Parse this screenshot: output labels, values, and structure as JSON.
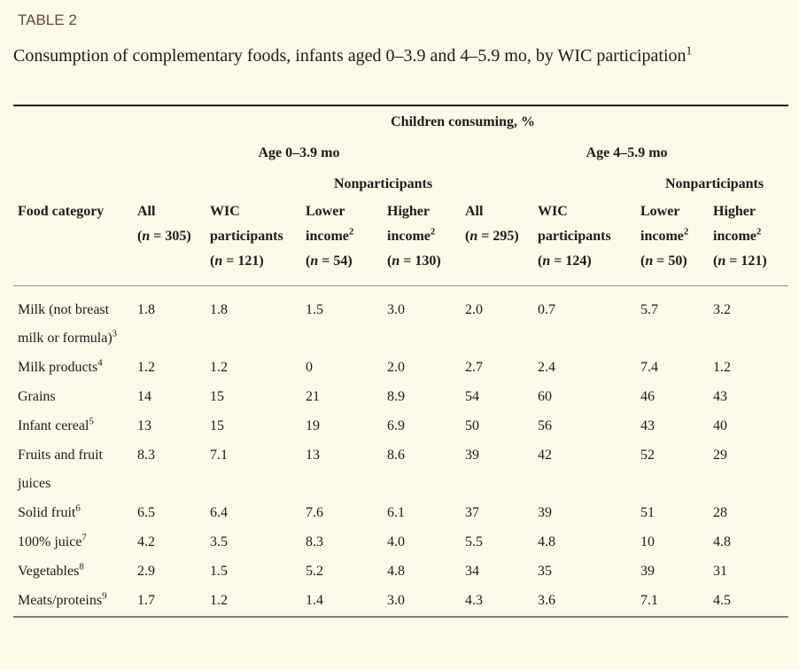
{
  "header": {
    "label": "TABLE 2",
    "caption": "Consumption of complementary foods, infants aged 0–3.9 and 4–5.9 mo, by WIC participation",
    "caption_sup": "1"
  },
  "table": {
    "spanner": "Children consuming, %",
    "age_groups": [
      "Age 0–3.9 mo",
      "Age 4–5.9 mo"
    ],
    "nonparticipants_label": "Nonparticipants",
    "columns": [
      {
        "id": "food-category",
        "lines": [
          [
            {
              "t": "Food category"
            }
          ]
        ]
      },
      {
        "id": "all-age-0-3-9",
        "lines": [
          [
            {
              "t": "All"
            }
          ],
          [
            {
              "t": "("
            },
            {
              "t": "n",
              "s": "i"
            },
            {
              "t": " = 305)"
            }
          ]
        ]
      },
      {
        "id": "wic-participants-age-0-3-9",
        "lines": [
          [
            {
              "t": "WIC"
            }
          ],
          [
            {
              "t": "participants"
            }
          ],
          [
            {
              "t": "("
            },
            {
              "t": "n",
              "s": "i"
            },
            {
              "t": " = 121)"
            }
          ]
        ]
      },
      {
        "id": "lower-income-age-0-3-9",
        "lines": [
          [
            {
              "t": "Lower"
            }
          ],
          [
            {
              "t": "income"
            },
            {
              "t": "2",
              "s": "sup"
            }
          ],
          [
            {
              "t": "("
            },
            {
              "t": "n",
              "s": "i"
            },
            {
              "t": " = 54)"
            }
          ]
        ]
      },
      {
        "id": "higher-income-age-0-3-9",
        "lines": [
          [
            {
              "t": "Higher"
            }
          ],
          [
            {
              "t": "income"
            },
            {
              "t": "2",
              "s": "sup"
            }
          ],
          [
            {
              "t": "("
            },
            {
              "t": "n",
              "s": "i"
            },
            {
              "t": " = 130)"
            }
          ]
        ]
      },
      {
        "id": "all-age-4-5-9",
        "lines": [
          [
            {
              "t": "All"
            }
          ],
          [
            {
              "t": "("
            },
            {
              "t": "n",
              "s": "i"
            },
            {
              "t": " = 295)"
            }
          ]
        ]
      },
      {
        "id": "wic-participants-age-4-5-9",
        "lines": [
          [
            {
              "t": "WIC"
            }
          ],
          [
            {
              "t": "participants"
            }
          ],
          [
            {
              "t": "("
            },
            {
              "t": "n",
              "s": "i"
            },
            {
              "t": " = 124)"
            }
          ]
        ]
      },
      {
        "id": "lower-income-age-4-5-9",
        "lines": [
          [
            {
              "t": "Lower"
            }
          ],
          [
            {
              "t": "income"
            },
            {
              "t": "2",
              "s": "sup"
            }
          ],
          [
            {
              "t": "("
            },
            {
              "t": "n",
              "s": "i"
            },
            {
              "t": " = 50)"
            }
          ]
        ]
      },
      {
        "id": "higher-income-age-4-5-9",
        "lines": [
          [
            {
              "t": "Higher"
            }
          ],
          [
            {
              "t": "income"
            },
            {
              "t": "2",
              "s": "sup"
            }
          ],
          [
            {
              "t": "("
            },
            {
              "t": "n",
              "s": "i"
            },
            {
              "t": " = 121)"
            }
          ]
        ]
      }
    ],
    "rows": [
      {
        "label": "Milk (not breast milk or formula)",
        "sup": "3",
        "values": [
          "1.8",
          "1.8",
          "1.5",
          "3.0",
          "2.0",
          "0.7",
          "5.7",
          "3.2"
        ]
      },
      {
        "label": "Milk products",
        "sup": "4",
        "values": [
          "1.2",
          "1.2",
          "0",
          "2.0",
          "2.7",
          "2.4",
          "7.4",
          "1.2"
        ]
      },
      {
        "label": "Grains",
        "sup": "",
        "values": [
          "14",
          "15",
          "21",
          "8.9",
          "54",
          "60",
          "46",
          "43"
        ]
      },
      {
        "label": "Infant cereal",
        "sup": "5",
        "values": [
          "13",
          "15",
          "19",
          "6.9",
          "50",
          "56",
          "43",
          "40"
        ]
      },
      {
        "label": "Fruits and fruit juices",
        "sup": "",
        "values": [
          "8.3",
          "7.1",
          "13",
          "8.6",
          "39",
          "42",
          "52",
          "29"
        ]
      },
      {
        "label": "Solid fruit",
        "sup": "6",
        "values": [
          "6.5",
          "6.4",
          "7.6",
          "6.1",
          "37",
          "39",
          "51",
          "28"
        ]
      },
      {
        "label": "100% juice",
        "sup": "7",
        "values": [
          "4.2",
          "3.5",
          "8.3",
          "4.0",
          "5.5",
          "4.8",
          "10",
          "4.8"
        ]
      },
      {
        "label": "Vegetables",
        "sup": "8",
        "values": [
          "2.9",
          "1.5",
          "5.2",
          "4.8",
          "34",
          "35",
          "39",
          "31"
        ]
      },
      {
        "label": "Meats/proteins",
        "sup": "9",
        "values": [
          "1.7",
          "1.2",
          "1.4",
          "3.0",
          "4.3",
          "3.6",
          "7.1",
          "4.5"
        ]
      }
    ]
  },
  "colors": {
    "background": "#fdf9e8",
    "label_text": "#684738",
    "body_text": "#1b1b1b",
    "rule_top": "#1c1c1c",
    "rule_mid": "#8a9094",
    "rule_bottom": "#7f7f7f"
  }
}
